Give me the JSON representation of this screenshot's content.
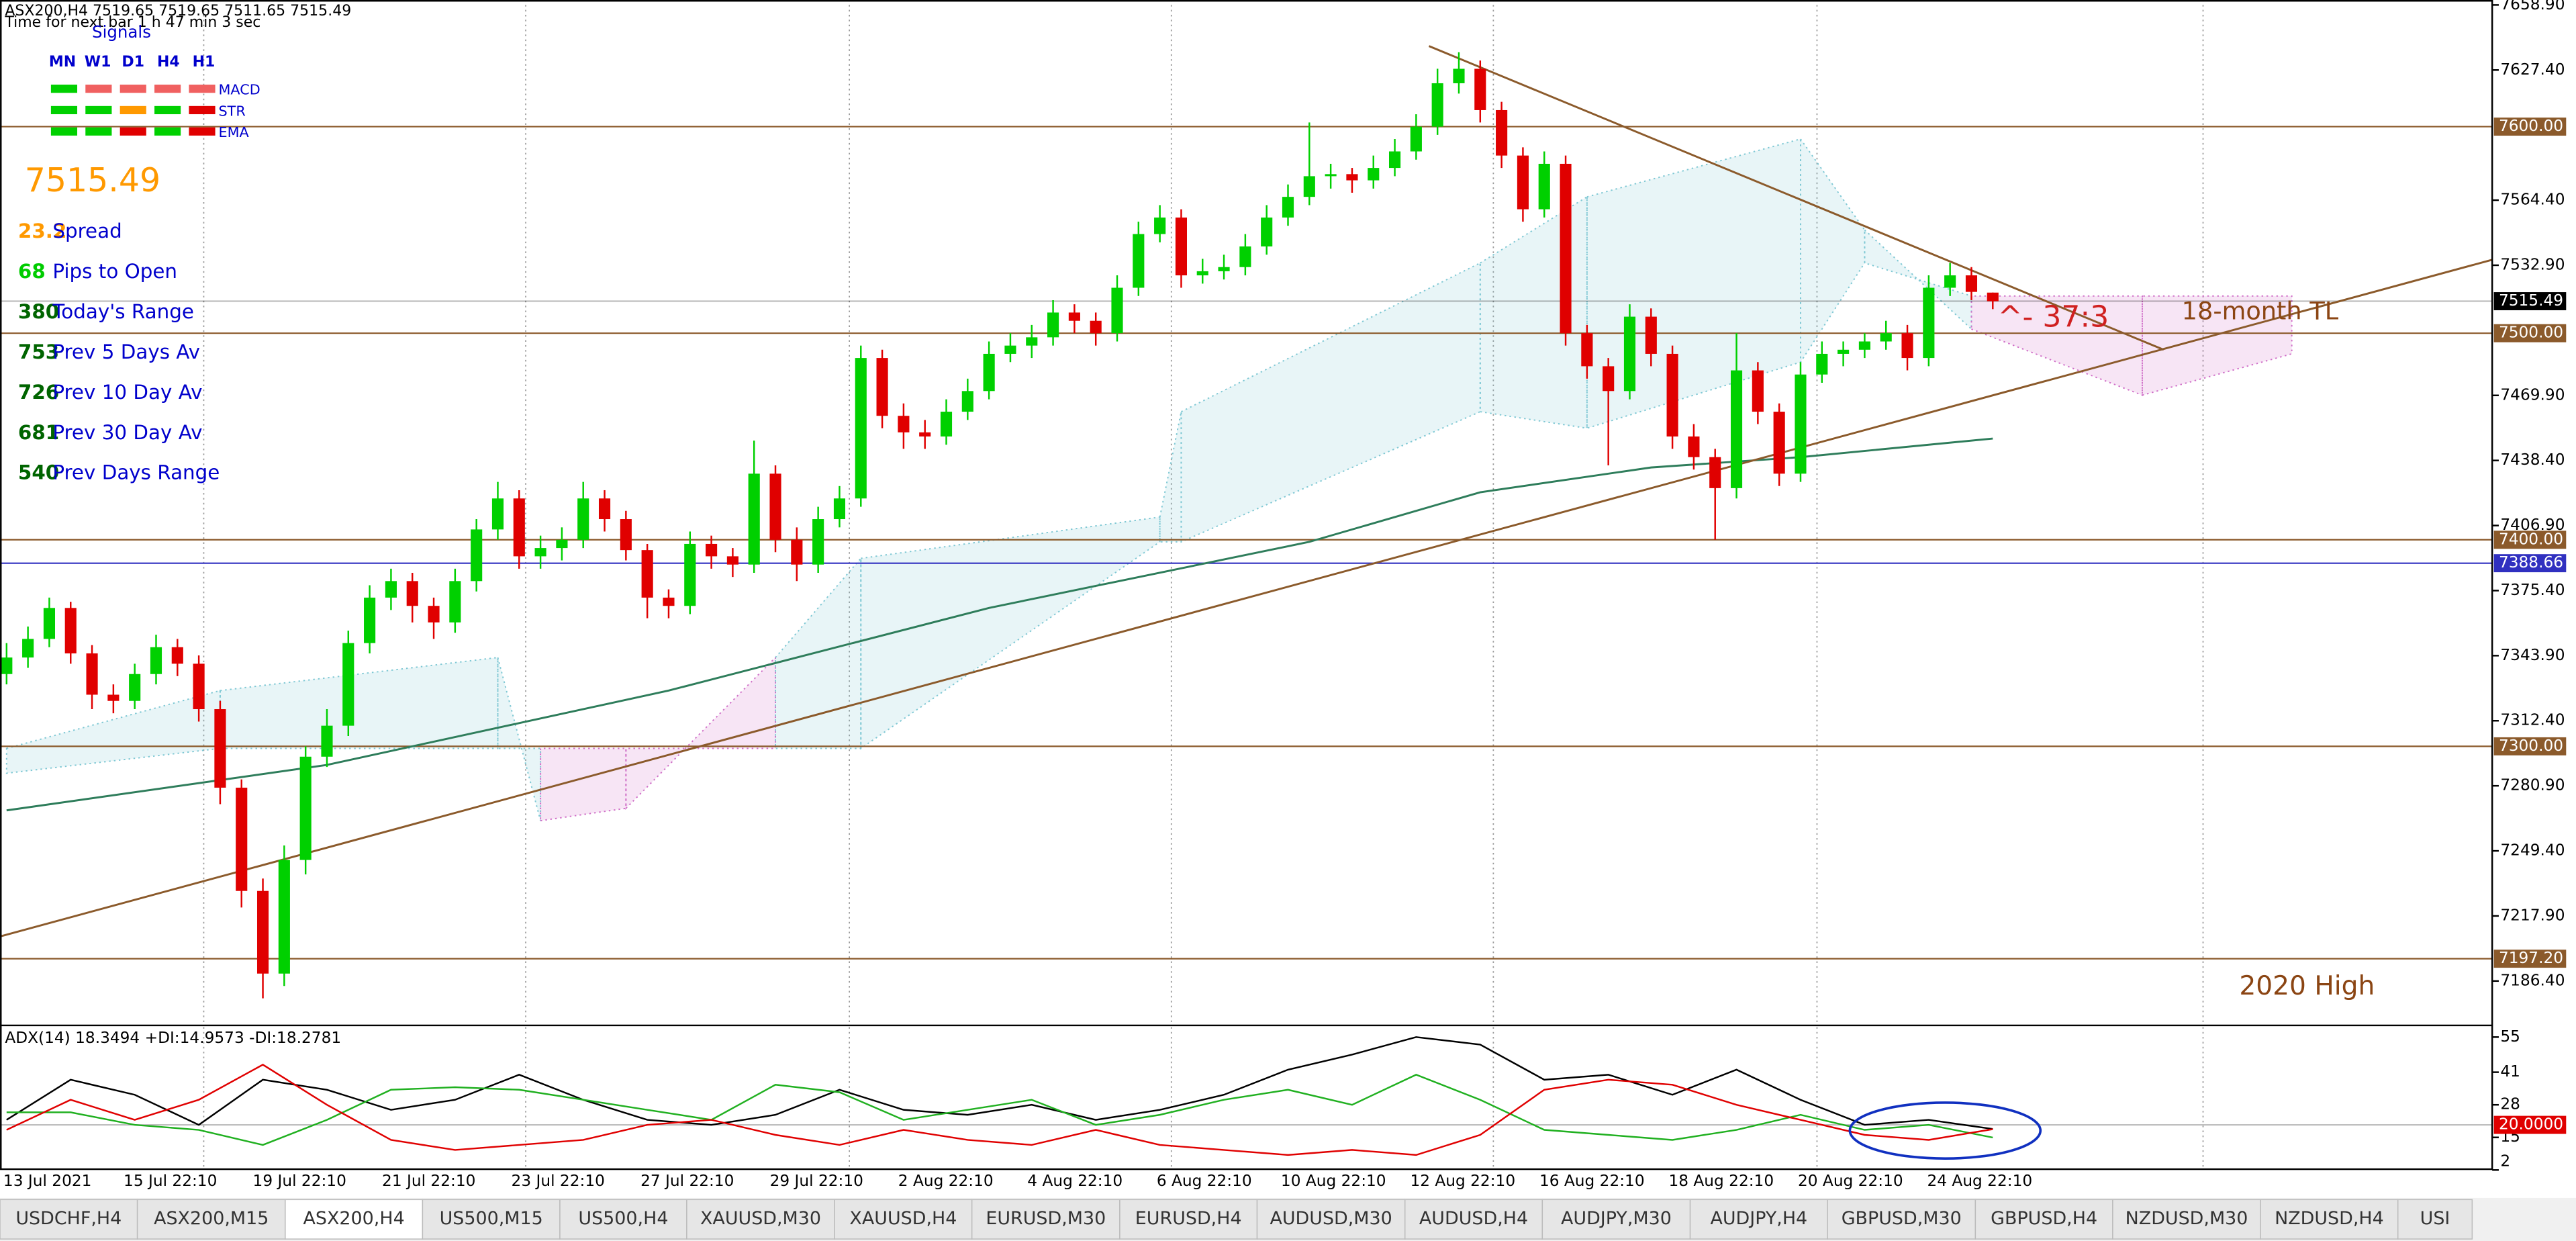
{
  "chart_data": {
    "type": "candlestick",
    "header": "ASX200,H4  7519.65 7519.65 7511.65 7515.49",
    "timer": "Time for next bar  1 h 47 min 3 sec",
    "ylim": [
      7166.5,
      7661.3
    ],
    "yticks": [
      {
        "value": 7658.9,
        "label": "7658.90"
      },
      {
        "value": 7627.4,
        "label": "7627.40"
      },
      {
        "value": 7564.4,
        "label": "7564.40"
      },
      {
        "value": 7532.9,
        "label": "7532.90"
      },
      {
        "value": 7469.9,
        "label": "7469.90"
      },
      {
        "value": 7438.4,
        "label": "7438.40"
      },
      {
        "value": 7406.9,
        "label": "7406.90"
      },
      {
        "value": 7375.4,
        "label": "7375.40"
      },
      {
        "value": 7343.9,
        "label": "7343.90"
      },
      {
        "value": 7312.4,
        "label": "7312.40"
      },
      {
        "value": 7280.9,
        "label": "7280.90"
      },
      {
        "value": 7249.4,
        "label": "7249.40"
      },
      {
        "value": 7217.9,
        "label": "7217.90"
      },
      {
        "value": 7186.4,
        "label": "7186.40"
      }
    ],
    "x_labels": [
      "13 Jul 2021",
      "15 Jul 22:10",
      "19 Jul 22:10",
      "21 Jul 22:10",
      "23 Jul 22:10",
      "27 Jul 22:10",
      "29 Jul 22:10",
      "2 Aug 22:10",
      "4 Aug 22:10",
      "6 Aug 22:10",
      "10 Aug 22:10",
      "12 Aug 22:10",
      "16 Aug 22:10",
      "18 Aug 22:10",
      "20 Aug 22:10",
      "24 Aug 22:10"
    ],
    "up_color": "#00d000",
    "down_color": "#e00000",
    "candles": [
      [
        7335,
        7350,
        7330,
        7343
      ],
      [
        7343,
        7358,
        7338,
        7352
      ],
      [
        7352,
        7372,
        7348,
        7367
      ],
      [
        7367,
        7370,
        7340,
        7345
      ],
      [
        7345,
        7349,
        7318,
        7325
      ],
      [
        7325,
        7330,
        7316,
        7322
      ],
      [
        7322,
        7340,
        7318,
        7335
      ],
      [
        7335,
        7354,
        7330,
        7348
      ],
      [
        7348,
        7352,
        7334,
        7340
      ],
      [
        7340,
        7344,
        7312,
        7318
      ],
      [
        7318,
        7322,
        7272,
        7280
      ],
      [
        7280,
        7284,
        7222,
        7230
      ],
      [
        7230,
        7236,
        7178,
        7190
      ],
      [
        7190,
        7252,
        7184,
        7245
      ],
      [
        7245,
        7300,
        7238,
        7295
      ],
      [
        7295,
        7318,
        7290,
        7310
      ],
      [
        7310,
        7356,
        7305,
        7350
      ],
      [
        7350,
        7378,
        7345,
        7372
      ],
      [
        7372,
        7386,
        7366,
        7380
      ],
      [
        7380,
        7384,
        7360,
        7368
      ],
      [
        7368,
        7372,
        7352,
        7360
      ],
      [
        7360,
        7386,
        7355,
        7380
      ],
      [
        7380,
        7410,
        7375,
        7405
      ],
      [
        7405,
        7428,
        7400,
        7420
      ],
      [
        7420,
        7424,
        7386,
        7392
      ],
      [
        7392,
        7402,
        7386,
        7396
      ],
      [
        7396,
        7406,
        7390,
        7400
      ],
      [
        7400,
        7428,
        7396,
        7420
      ],
      [
        7420,
        7424,
        7404,
        7410
      ],
      [
        7410,
        7414,
        7390,
        7395
      ],
      [
        7395,
        7398,
        7362,
        7372
      ],
      [
        7372,
        7376,
        7362,
        7368
      ],
      [
        7368,
        7404,
        7364,
        7398
      ],
      [
        7398,
        7402,
        7386,
        7392
      ],
      [
        7392,
        7396,
        7382,
        7388
      ],
      [
        7388,
        7448,
        7384,
        7432
      ],
      [
        7432,
        7436,
        7394,
        7400
      ],
      [
        7400,
        7406,
        7380,
        7388
      ],
      [
        7388,
        7416,
        7384,
        7410
      ],
      [
        7410,
        7426,
        7406,
        7420
      ],
      [
        7420,
        7494,
        7416,
        7488
      ],
      [
        7488,
        7492,
        7454,
        7460
      ],
      [
        7460,
        7466,
        7444,
        7452
      ],
      [
        7452,
        7458,
        7444,
        7450
      ],
      [
        7450,
        7468,
        7446,
        7462
      ],
      [
        7462,
        7478,
        7458,
        7472
      ],
      [
        7472,
        7496,
        7468,
        7490
      ],
      [
        7490,
        7500,
        7486,
        7494
      ],
      [
        7494,
        7504,
        7488,
        7498
      ],
      [
        7498,
        7516,
        7494,
        7510
      ],
      [
        7510,
        7514,
        7500,
        7506
      ],
      [
        7506,
        7510,
        7494,
        7500
      ],
      [
        7500,
        7528,
        7496,
        7522
      ],
      [
        7522,
        7554,
        7518,
        7548
      ],
      [
        7548,
        7562,
        7544,
        7556
      ],
      [
        7556,
        7560,
        7522,
        7528
      ],
      [
        7528,
        7536,
        7524,
        7530
      ],
      [
        7530,
        7538,
        7526,
        7532
      ],
      [
        7532,
        7548,
        7528,
        7542
      ],
      [
        7542,
        7562,
        7538,
        7556
      ],
      [
        7556,
        7572,
        7552,
        7566
      ],
      [
        7566,
        7602,
        7562,
        7576
      ],
      [
        7576,
        7582,
        7570,
        7577
      ],
      [
        7577,
        7580,
        7568,
        7574
      ],
      [
        7574,
        7586,
        7570,
        7580
      ],
      [
        7580,
        7594,
        7576,
        7588
      ],
      [
        7588,
        7606,
        7584,
        7600
      ],
      [
        7600,
        7628,
        7596,
        7621
      ],
      [
        7621,
        7636,
        7616,
        7628
      ],
      [
        7628,
        7632,
        7602,
        7608
      ],
      [
        7608,
        7612,
        7580,
        7586
      ],
      [
        7586,
        7590,
        7554,
        7560
      ],
      [
        7560,
        7588,
        7556,
        7582
      ],
      [
        7582,
        7586,
        7494,
        7500
      ],
      [
        7500,
        7504,
        7478,
        7484
      ],
      [
        7484,
        7488,
        7436,
        7472
      ],
      [
        7472,
        7514,
        7468,
        7508
      ],
      [
        7508,
        7512,
        7484,
        7490
      ],
      [
        7490,
        7494,
        7444,
        7450
      ],
      [
        7450,
        7456,
        7434,
        7440
      ],
      [
        7440,
        7444,
        7400,
        7425
      ],
      [
        7425,
        7500,
        7420,
        7482
      ],
      [
        7482,
        7486,
        7456,
        7462
      ],
      [
        7462,
        7466,
        7426,
        7432
      ],
      [
        7432,
        7486,
        7428,
        7480
      ],
      [
        7480,
        7496,
        7476,
        7490
      ],
      [
        7490,
        7496,
        7484,
        7492
      ],
      [
        7492,
        7500,
        7488,
        7496
      ],
      [
        7496,
        7506,
        7492,
        7500
      ],
      [
        7500,
        7504,
        7482,
        7488
      ],
      [
        7488,
        7528,
        7484,
        7522
      ],
      [
        7522,
        7534,
        7518,
        7528
      ],
      [
        7528,
        7532,
        7516,
        7520
      ],
      [
        7519.65,
        7519.65,
        7511.65,
        7515.49
      ]
    ],
    "cloud": {
      "x": [
        0,
        10,
        23,
        25,
        29,
        36,
        40,
        54,
        55,
        69,
        74,
        84,
        87,
        92,
        100,
        107
      ],
      "span_a": [
        7299,
        7327,
        7343,
        7264,
        7270,
        7343,
        7391,
        7411,
        7462,
        7534,
        7566,
        7594,
        7550,
        7502,
        7470,
        7490
      ],
      "span_b": [
        7287,
        7299,
        7299,
        7299,
        7299,
        7299,
        7299,
        7399,
        7399,
        7462,
        7454,
        7486,
        7534,
        7518,
        7518,
        7518
      ],
      "up_color": "#7fc8d4",
      "down_color": "#d070c8"
    },
    "ma": {
      "color": "#2e7d5b",
      "x": [
        0,
        15,
        31,
        46,
        61,
        69,
        77,
        84,
        93
      ],
      "values": [
        7269,
        7291,
        7327,
        7367,
        7399,
        7423,
        7435,
        7440,
        7449
      ]
    },
    "trendlines": [
      {
        "color": "#8b5a2b",
        "x": [
          -0.3,
          116.4
        ],
        "values": [
          7208,
          7535.6
        ]
      },
      {
        "color": "#8b5a2b",
        "x": [
          66.6,
          101
        ],
        "values": [
          7639,
          7492
        ]
      }
    ],
    "levels": [
      {
        "value": 7600,
        "label": "7600.00",
        "color": "#8b5a2b"
      },
      {
        "value": 7515.49,
        "label": "7515.49",
        "color": "#000000"
      },
      {
        "value": 7500,
        "label": "7500.00",
        "color": "#8b5a2b"
      },
      {
        "value": 7400,
        "label": "7400.00",
        "color": "#8b5a2b"
      },
      {
        "value": 7388.66,
        "label": "7388.66",
        "color": "#3030c0"
      },
      {
        "value": 7300,
        "label": "7300.00",
        "color": "#8b5a2b"
      },
      {
        "value": 7197.2,
        "label": "7197.20",
        "color": "#8b5a2b"
      }
    ],
    "annotations": [
      {
        "text": "^- 37:3",
        "color": "#d02020"
      },
      {
        "text": "18-month TL",
        "color": "#8b4513"
      },
      {
        "text": "2020 High",
        "color": "#8b4513"
      }
    ],
    "adx": {
      "title": "ADX(14) 18.3494 +DI:14.9573 -DI:18.2781",
      "ylim": [
        2,
        59
      ],
      "yticks": [
        55,
        41,
        28,
        15,
        2
      ],
      "level": {
        "value": 20,
        "label": "20.0000",
        "color": "#e00000"
      },
      "series": [
        {
          "color": "#000000",
          "values": [
            22,
            38,
            32,
            20,
            38,
            34,
            26,
            30,
            40,
            30,
            22,
            20,
            24,
            34,
            26,
            24,
            28,
            22,
            26,
            32,
            42,
            48,
            55,
            52,
            38,
            40,
            32,
            42,
            30,
            20,
            22,
            18.3494
          ]
        },
        {
          "color": "#20b020",
          "values": [
            25,
            25,
            20,
            18,
            12,
            22,
            34,
            35,
            34,
            30,
            26,
            22,
            36,
            33,
            22,
            26,
            30,
            20,
            24,
            30,
            34,
            28,
            40,
            30,
            18,
            16,
            14,
            18,
            24,
            18,
            20,
            14.9573
          ]
        },
        {
          "color": "#e00000",
          "values": [
            18,
            30,
            22,
            30,
            44,
            28,
            14,
            10,
            12,
            14,
            20,
            22,
            16,
            12,
            18,
            14,
            12,
            18,
            12,
            10,
            8,
            10,
            8,
            16,
            34,
            38,
            36,
            28,
            22,
            16,
            14,
            18.2781
          ]
        }
      ]
    }
  },
  "info": {
    "signals_title": "Signals",
    "columns": [
      "MN",
      "W1",
      "D1",
      "H4",
      "H1"
    ],
    "rows": [
      {
        "name": "MACD",
        "colors": [
          "#00d000",
          "#f06060",
          "#f06060",
          "#f06060",
          "#f06060"
        ]
      },
      {
        "name": "STR",
        "colors": [
          "#00d000",
          "#00d000",
          "#ff9900",
          "#00d000",
          "#e00000"
        ]
      },
      {
        "name": "EMA",
        "colors": [
          "#00d000",
          "#00d000",
          "#e00000",
          "#00d000",
          "#e00000"
        ]
      }
    ],
    "price": "7515.49",
    "stats": [
      {
        "value": "23.2",
        "label": "Spread",
        "color": "#ff9900"
      },
      {
        "value": "68",
        "label": "Pips to Open",
        "color": "#00cc00"
      },
      {
        "value": "380",
        "label": "Today's Range",
        "color": "#006400"
      },
      {
        "value": "753",
        "label": "Prev 5 Days Av",
        "color": "#006400"
      },
      {
        "value": "726",
        "label": "Prev 10 Day Av",
        "color": "#006400"
      },
      {
        "value": "681",
        "label": "Prev 30 Day Av",
        "color": "#006400"
      },
      {
        "value": "540",
        "label": "Prev Days Range",
        "color": "#006400"
      }
    ]
  },
  "tabs": [
    {
      "label": "USDCHF,H4"
    },
    {
      "label": "ASX200,M15"
    },
    {
      "label": "ASX200,H4",
      "active": true
    },
    {
      "label": "US500,M15"
    },
    {
      "label": "US500,H4"
    },
    {
      "label": "XAUUSD,M30"
    },
    {
      "label": "XAUUSD,H4"
    },
    {
      "label": "EURUSD,M30"
    },
    {
      "label": "EURUSD,H4"
    },
    {
      "label": "AUDUSD,M30"
    },
    {
      "label": "AUDUSD,H4"
    },
    {
      "label": "AUDJPY,M30"
    },
    {
      "label": "AUDJPY,H4"
    },
    {
      "label": "GBPUSD,M30"
    },
    {
      "label": "GBPUSD,H4"
    },
    {
      "label": "NZDUSD,M30"
    },
    {
      "label": "NZDUSD,H4"
    },
    {
      "label": "USI"
    }
  ]
}
